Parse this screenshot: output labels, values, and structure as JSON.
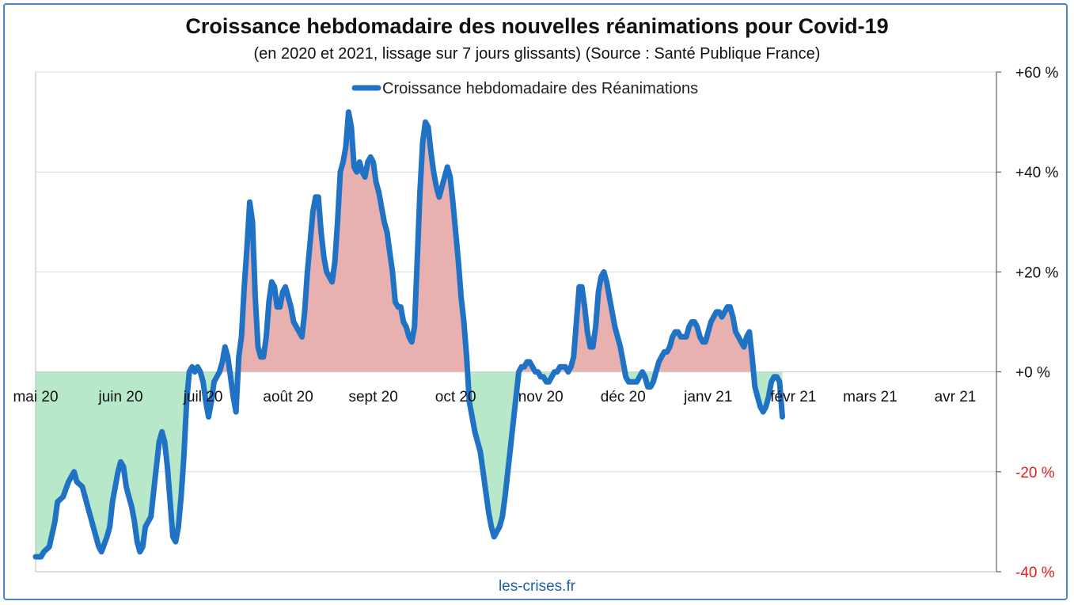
{
  "chart_data": {
    "type": "line",
    "title": "Croissance hebdomadaire des nouvelles réanimations pour Covid-19",
    "subtitle": "(en 2020 et 2021, lissage sur 7 jours glissants) (Source : Santé Publique France)",
    "footer": "les-crises.fr",
    "x_tick_labels": [
      "mai 20",
      "juin 20",
      "juil 20",
      "août 20",
      "sept 20",
      "oct 20",
      "nov 20",
      "déc 20",
      "janv 21",
      "févr 21",
      "mars 21",
      "avr 21"
    ],
    "y_tick_labels": [
      "+60 %",
      "+40 %",
      "+20 %",
      "+0 %",
      "-20 %",
      "-40 %"
    ],
    "y_ticks": [
      60,
      40,
      20,
      0,
      -20,
      -40
    ],
    "ylim": [
      -40,
      60
    ],
    "xlim": [
      0,
      350
    ],
    "grid": true,
    "legend_position": "top-center",
    "colors": {
      "line": "#1f72c4",
      "positive_fill": "#e9b0b0",
      "negative_fill": "#b7e8c9",
      "negative_tick": "#e02020",
      "positive_tick": "#111111",
      "gridline": "#d9d9d9"
    },
    "series": [
      {
        "name": "Croissance hebdomadaire des Réanimations",
        "points": [
          [
            0,
            -37
          ],
          [
            2,
            -37
          ],
          [
            3,
            -36
          ],
          [
            5,
            -35
          ],
          [
            7,
            -30
          ],
          [
            8,
            -26
          ],
          [
            10,
            -25
          ],
          [
            12,
            -22
          ],
          [
            13,
            -21
          ],
          [
            14,
            -20
          ],
          [
            15,
            -22
          ],
          [
            17,
            -23
          ],
          [
            19,
            -27
          ],
          [
            21,
            -31
          ],
          [
            22,
            -33
          ],
          [
            23,
            -35
          ],
          [
            24,
            -36
          ],
          [
            26,
            -33
          ],
          [
            27,
            -31
          ],
          [
            28,
            -26
          ],
          [
            29,
            -23
          ],
          [
            30,
            -20
          ],
          [
            31,
            -18
          ],
          [
            32,
            -19
          ],
          [
            33,
            -23
          ],
          [
            34,
            -25
          ],
          [
            35,
            -27
          ],
          [
            36,
            -30
          ],
          [
            37,
            -34
          ],
          [
            38,
            -36
          ],
          [
            39,
            -35
          ],
          [
            40,
            -31
          ],
          [
            42,
            -29
          ],
          [
            43,
            -24
          ],
          [
            44,
            -19
          ],
          [
            45,
            -14
          ],
          [
            46,
            -12
          ],
          [
            47,
            -14
          ],
          [
            48,
            -19
          ],
          [
            49,
            -26
          ],
          [
            50,
            -33
          ],
          [
            51,
            -34
          ],
          [
            52,
            -31
          ],
          [
            53,
            -25
          ],
          [
            54,
            -17
          ],
          [
            55,
            -6
          ],
          [
            56,
            0
          ],
          [
            57,
            1
          ],
          [
            58,
            0
          ],
          [
            59,
            1
          ],
          [
            60,
            0
          ],
          [
            61,
            -2
          ],
          [
            62,
            -6
          ],
          [
            63,
            -9
          ],
          [
            64,
            -6
          ],
          [
            65,
            -2
          ],
          [
            66,
            -1
          ],
          [
            67,
            0
          ],
          [
            68,
            2
          ],
          [
            69,
            5
          ],
          [
            70,
            3
          ],
          [
            71,
            -1
          ],
          [
            72,
            -5
          ],
          [
            73,
            -8
          ],
          [
            74,
            3
          ],
          [
            75,
            7
          ],
          [
            76,
            17
          ],
          [
            77,
            25
          ],
          [
            78,
            34
          ],
          [
            79,
            30
          ],
          [
            80,
            15
          ],
          [
            81,
            5
          ],
          [
            82,
            3
          ],
          [
            83,
            3
          ],
          [
            84,
            7
          ],
          [
            85,
            14
          ],
          [
            86,
            18
          ],
          [
            87,
            17
          ],
          [
            88,
            13
          ],
          [
            89,
            13
          ],
          [
            90,
            16
          ],
          [
            91,
            17
          ],
          [
            92,
            15
          ],
          [
            93,
            13
          ],
          [
            94,
            10
          ],
          [
            96,
            8
          ],
          [
            97,
            7
          ],
          [
            98,
            12
          ],
          [
            99,
            20
          ],
          [
            100,
            26
          ],
          [
            101,
            32
          ],
          [
            102,
            35
          ],
          [
            103,
            35
          ],
          [
            104,
            28
          ],
          [
            105,
            23
          ],
          [
            106,
            20
          ],
          [
            107,
            19
          ],
          [
            108,
            18
          ],
          [
            109,
            22
          ],
          [
            110,
            30
          ],
          [
            111,
            40
          ],
          [
            112,
            42
          ],
          [
            113,
            45
          ],
          [
            114,
            52
          ],
          [
            115,
            49
          ],
          [
            116,
            41
          ],
          [
            117,
            40
          ],
          [
            118,
            42
          ],
          [
            119,
            40
          ],
          [
            120,
            39
          ],
          [
            121,
            42
          ],
          [
            122,
            43
          ],
          [
            123,
            42
          ],
          [
            124,
            38
          ],
          [
            125,
            36
          ],
          [
            126,
            33
          ],
          [
            127,
            30
          ],
          [
            128,
            28
          ],
          [
            129,
            24
          ],
          [
            130,
            20
          ],
          [
            131,
            14
          ],
          [
            132,
            13
          ],
          [
            133,
            13
          ],
          [
            134,
            10
          ],
          [
            135,
            9
          ],
          [
            136,
            7
          ],
          [
            137,
            6
          ],
          [
            138,
            9
          ],
          [
            139,
            22
          ],
          [
            140,
            36
          ],
          [
            141,
            46
          ],
          [
            142,
            50
          ],
          [
            143,
            49
          ],
          [
            144,
            44
          ],
          [
            145,
            40
          ],
          [
            146,
            37
          ],
          [
            147,
            35
          ],
          [
            148,
            37
          ],
          [
            149,
            39
          ],
          [
            150,
            41
          ],
          [
            151,
            39
          ],
          [
            152,
            34
          ],
          [
            153,
            28
          ],
          [
            154,
            22
          ],
          [
            155,
            15
          ],
          [
            156,
            10
          ],
          [
            157,
            3
          ],
          [
            158,
            -6
          ],
          [
            159,
            -9
          ],
          [
            160,
            -12
          ],
          [
            161,
            -14
          ],
          [
            162,
            -16
          ],
          [
            163,
            -20
          ],
          [
            164,
            -24
          ],
          [
            165,
            -28
          ],
          [
            166,
            -31
          ],
          [
            167,
            -33
          ],
          [
            168,
            -32
          ],
          [
            169,
            -31
          ],
          [
            170,
            -29
          ],
          [
            171,
            -25
          ],
          [
            172,
            -20
          ],
          [
            173,
            -15
          ],
          [
            174,
            -10
          ],
          [
            175,
            -5
          ],
          [
            176,
            0
          ],
          [
            177,
            1
          ],
          [
            178,
            1
          ],
          [
            179,
            2
          ],
          [
            180,
            2
          ],
          [
            181,
            1
          ],
          [
            182,
            0
          ],
          [
            183,
            0
          ],
          [
            184,
            -1
          ],
          [
            185,
            -1
          ],
          [
            186,
            -2
          ],
          [
            187,
            -2
          ],
          [
            188,
            -1
          ],
          [
            189,
            0
          ],
          [
            190,
            0
          ],
          [
            191,
            1
          ],
          [
            192,
            1
          ],
          [
            193,
            1
          ],
          [
            194,
            0
          ],
          [
            195,
            1
          ],
          [
            196,
            3
          ],
          [
            197,
            10
          ],
          [
            198,
            17
          ],
          [
            199,
            17
          ],
          [
            200,
            13
          ],
          [
            201,
            8
          ],
          [
            202,
            5
          ],
          [
            203,
            5
          ],
          [
            204,
            9
          ],
          [
            205,
            16
          ],
          [
            206,
            19
          ],
          [
            207,
            20
          ],
          [
            208,
            18
          ],
          [
            209,
            15
          ],
          [
            210,
            12
          ],
          [
            211,
            9
          ],
          [
            212,
            7
          ],
          [
            213,
            5
          ],
          [
            214,
            2
          ],
          [
            215,
            -1
          ],
          [
            216,
            -2
          ],
          [
            217,
            -2
          ],
          [
            218,
            -2
          ],
          [
            219,
            -2
          ],
          [
            220,
            -1
          ],
          [
            221,
            0
          ],
          [
            222,
            -1
          ],
          [
            223,
            -3
          ],
          [
            224,
            -3
          ],
          [
            225,
            -2
          ],
          [
            226,
            0
          ],
          [
            227,
            2
          ],
          [
            228,
            3
          ],
          [
            229,
            4
          ],
          [
            230,
            4
          ],
          [
            231,
            5
          ],
          [
            232,
            7
          ],
          [
            233,
            8
          ],
          [
            234,
            8
          ],
          [
            235,
            7
          ],
          [
            236,
            7
          ],
          [
            237,
            7
          ],
          [
            238,
            9
          ],
          [
            239,
            10
          ],
          [
            240,
            10
          ],
          [
            241,
            9
          ],
          [
            242,
            7
          ],
          [
            243,
            6
          ],
          [
            244,
            6
          ],
          [
            245,
            8
          ],
          [
            246,
            10
          ],
          [
            247,
            11
          ],
          [
            248,
            12
          ],
          [
            249,
            12
          ],
          [
            250,
            11
          ],
          [
            251,
            12
          ],
          [
            252,
            13
          ],
          [
            253,
            13
          ],
          [
            254,
            11
          ],
          [
            255,
            8
          ],
          [
            256,
            7
          ],
          [
            257,
            6
          ],
          [
            258,
            5
          ],
          [
            259,
            7
          ],
          [
            260,
            8
          ],
          [
            261,
            3
          ],
          [
            262,
            -3
          ],
          [
            263,
            -5
          ],
          [
            264,
            -7
          ],
          [
            265,
            -8
          ],
          [
            266,
            -7
          ],
          [
            267,
            -5
          ],
          [
            268,
            -2
          ],
          [
            269,
            -1
          ],
          [
            270,
            -1
          ],
          [
            271,
            -2
          ],
          [
            272,
            -9
          ]
        ]
      }
    ]
  }
}
